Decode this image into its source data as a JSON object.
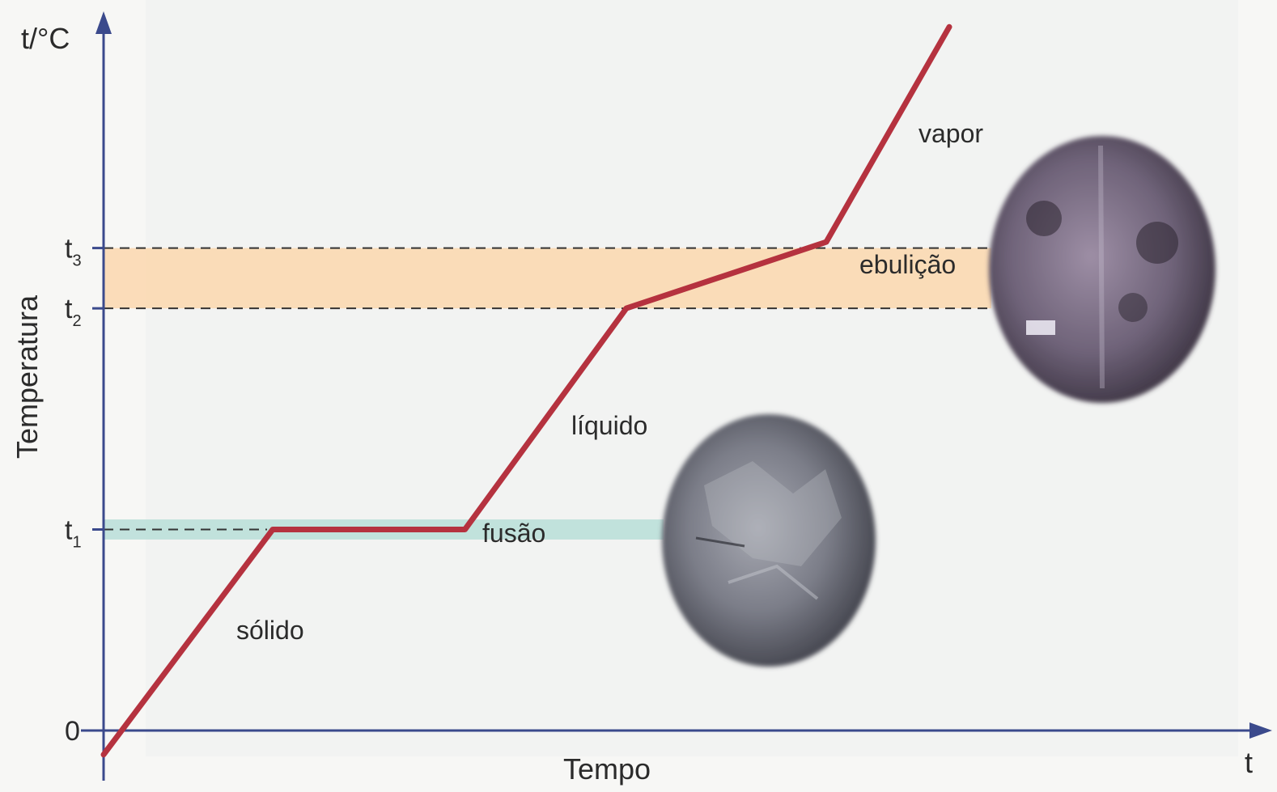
{
  "chart_data": {
    "type": "line",
    "title": "",
    "xlabel": "Tempo",
    "ylabel": "Temperatura",
    "x_axis_symbol": "t",
    "y_axis_symbol": "t/°C",
    "y_ticks": [
      {
        "base": "t",
        "sub": "",
        "text": "0",
        "value": 0
      },
      {
        "base": "t",
        "sub": "1",
        "value": 1
      },
      {
        "base": "t",
        "sub": "2",
        "value": 2.1
      },
      {
        "base": "t",
        "sub": "3",
        "value": 2.4
      }
    ],
    "bands": [
      {
        "name": "fusão",
        "from": 0.95,
        "to": 1.05,
        "color": "#b9ded8"
      },
      {
        "name": "ebulição",
        "from": 2.1,
        "to": 2.4,
        "color": "#fbd7ae"
      }
    ],
    "series": [
      {
        "color": "#b5323f",
        "points": [
          [
            0,
            -0.12
          ],
          [
            1.1,
            1
          ],
          [
            2.35,
            1
          ],
          [
            3.4,
            2.1
          ],
          [
            4.7,
            2.43
          ],
          [
            5.5,
            3.5
          ]
        ]
      }
    ],
    "phase_labels": [
      "sólido",
      "fusão",
      "líquido",
      "ebulição",
      "vapor"
    ],
    "images": [
      {
        "name": "melting-ice-photo",
        "depicts": "ice melting"
      },
      {
        "name": "boiling-water-photo",
        "depicts": "boiling water"
      }
    ],
    "axis_color": "#3b4a8c"
  }
}
